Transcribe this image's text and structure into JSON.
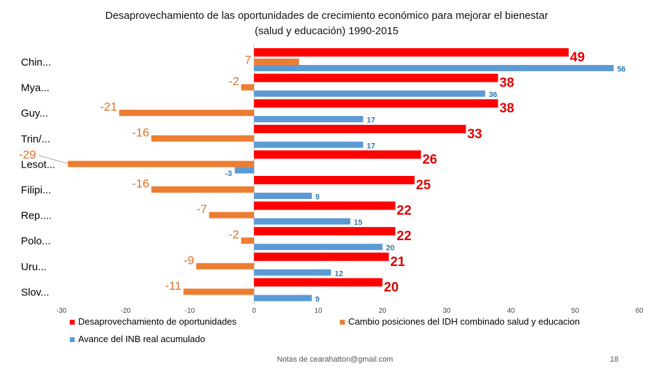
{
  "slide": {
    "title_line1": "Desaprovechamiento de las oportunidades de crecimiento económico para mejorar el bienestar",
    "title_line2": "(salud y educación) 1990-2015",
    "footer_note": "Notas de cearahatton@gmail.com",
    "page_number": "18"
  },
  "chart_data": {
    "type": "bar",
    "orientation": "horizontal",
    "title": "Desaprovechamiento de las oportunidades de crecimiento económico para mejorar el bienestar (salud y educación) 1990-2015",
    "categories": [
      "Chin...",
      "Mya...",
      "Guy...",
      "Trin/...",
      "Lesot...",
      "Filipi...",
      "Rep....",
      "Polo...",
      "Uru...",
      "Slov..."
    ],
    "series": [
      {
        "name": "Desaprovechamiento de oportunidades",
        "color": "#ff0000",
        "values": [
          49,
          38,
          38,
          33,
          26,
          25,
          22,
          22,
          21,
          20
        ]
      },
      {
        "name": "Cambio posiciones del IDH combinado salud y educacion",
        "color": "#ed7d31",
        "values": [
          7,
          -2,
          -21,
          -16,
          -29,
          -16,
          -7,
          -2,
          -9,
          -11
        ]
      },
      {
        "name": "Avance del INB real acumulado",
        "color": "#5b9bd5",
        "values": [
          56,
          36,
          17,
          17,
          -3,
          9,
          15,
          20,
          12,
          9
        ]
      }
    ],
    "xlim": [
      -30,
      60
    ],
    "xticks": [
      "-30",
      "-20",
      "-10",
      "0",
      "10",
      "20",
      "30",
      "40",
      "50",
      "60"
    ],
    "annotations": [
      {
        "text": "-29",
        "target": "Lesot...",
        "series": "Cambio posiciones del IDH combinado salud y educacion"
      }
    ],
    "legend": "bottom",
    "grid": false,
    "xlabel": "",
    "ylabel": ""
  }
}
